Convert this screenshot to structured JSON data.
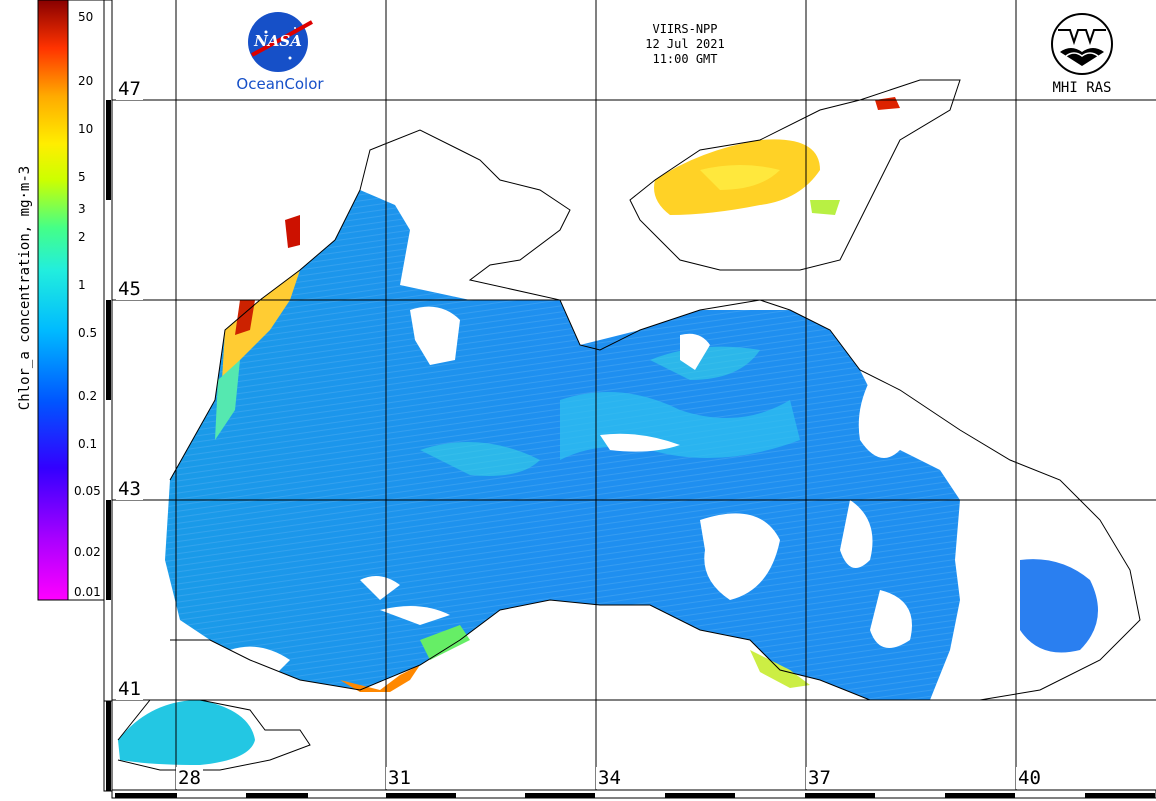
{
  "map": {
    "sensor": "VIIRS-NPP",
    "date": "12 Jul 2021",
    "time": "11:00 GMT",
    "latitude_labels": [
      "47",
      "45",
      "43",
      "41"
    ],
    "longitude_labels": [
      "28",
      "31",
      "34",
      "37",
      "40"
    ]
  },
  "colorbar": {
    "title": "Chlor_a concentration, mg·m-3",
    "ticks": [
      "50",
      "20",
      "10",
      "5",
      "3",
      "2",
      "1",
      "0.5",
      "0.2",
      "0.1",
      "0.05",
      "0.02",
      "0.01"
    ],
    "colors": [
      "#ff00ff",
      "#9900ff",
      "#2200ff",
      "#0066ff",
      "#00ccff",
      "#33ffcc",
      "#66ff33",
      "#ffff00",
      "#ffaa00",
      "#ff5500",
      "#dd0000",
      "#990000"
    ]
  },
  "logos": {
    "nasa_text": "NASA",
    "oceancolor": "OceanColor",
    "mhi": "MHI RAS"
  }
}
